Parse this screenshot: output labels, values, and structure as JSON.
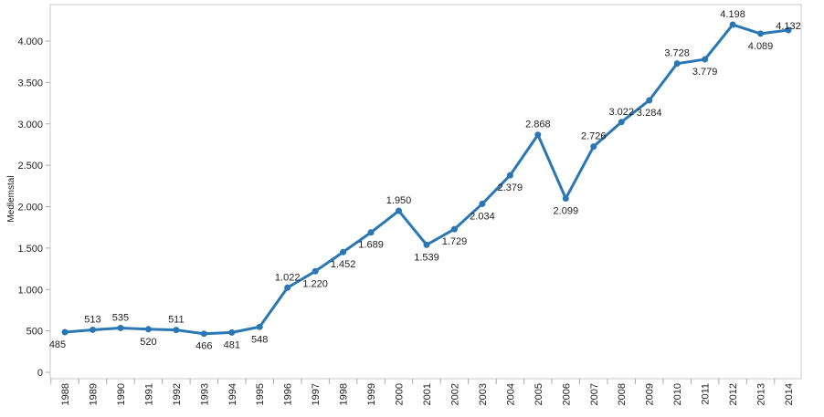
{
  "chart_data": {
    "type": "line",
    "title": "",
    "xlabel": "",
    "ylabel": "Medlemstal",
    "ylim": [
      0,
      4300
    ],
    "yticks": [
      0,
      500,
      1000,
      1500,
      2000,
      2500,
      3000,
      3500,
      4000
    ],
    "ytick_labels": [
      "0",
      "500",
      "1.000",
      "1.500",
      "2.000",
      "2.500",
      "3.000",
      "3.500",
      "4.000"
    ],
    "grid": false,
    "color": "#2a77b4",
    "categories": [
      "1988",
      "1989",
      "1990",
      "1991",
      "1992",
      "1993",
      "1994",
      "1995",
      "1996",
      "1997",
      "1998",
      "1999",
      "2000",
      "2001",
      "2002",
      "2003",
      "2004",
      "2005",
      "2006",
      "2007",
      "2008",
      "2009",
      "2010",
      "2011",
      "2012",
      "2013",
      "2014"
    ],
    "values": [
      485,
      513,
      535,
      520,
      511,
      466,
      481,
      548,
      1022,
      1220,
      1452,
      1689,
      1950,
      1539,
      1729,
      2034,
      2379,
      2868,
      2099,
      2726,
      3022,
      3284,
      3728,
      3779,
      4198,
      4089,
      4132
    ],
    "data_labels": [
      "485",
      "513",
      "535",
      "520",
      "511",
      "466",
      "481",
      "548",
      "1.022",
      "1.220",
      "1.452",
      "1.689",
      "1.950",
      "1.539",
      "1.729",
      "2.034",
      "2.379",
      "2.868",
      "2.099",
      "2.726",
      "3.022",
      "3.284",
      "3.728",
      "3.779",
      "4.198",
      "4.089",
      "4.132"
    ],
    "label_positions": [
      "below",
      "above",
      "above",
      "below",
      "above",
      "below",
      "below",
      "below",
      "above",
      "below",
      "below",
      "below",
      "above",
      "below",
      "below",
      "below",
      "below",
      "above",
      "below",
      "above",
      "above",
      "below",
      "above",
      "below",
      "above",
      "below",
      "above"
    ]
  }
}
